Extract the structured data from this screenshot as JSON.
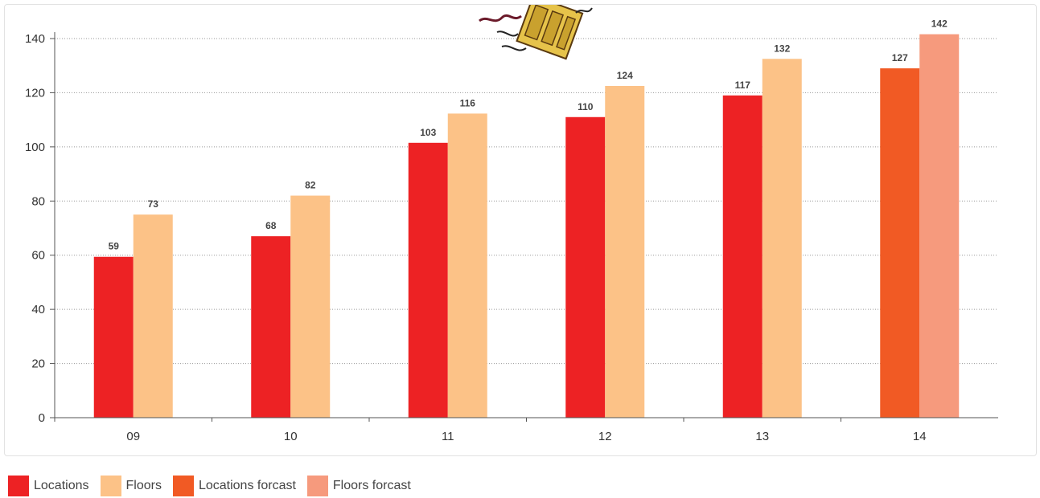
{
  "chart_data": {
    "type": "bar",
    "categories": [
      "09",
      "10",
      "11",
      "12",
      "13",
      "14"
    ],
    "series": [
      {
        "name": "Locations",
        "values": [
          59,
          68,
          103,
          110,
          117,
          null
        ],
        "color": "#ed2224"
      },
      {
        "name": "Floors",
        "values": [
          73,
          82,
          116,
          124,
          132,
          null
        ],
        "color": "#fcc287"
      },
      {
        "name": "Locations forcast",
        "values": [
          null,
          null,
          null,
          null,
          null,
          127
        ],
        "color": "#f15a24"
      },
      {
        "name": "Floors forcast",
        "values": [
          null,
          null,
          null,
          null,
          null,
          142
        ],
        "color": "#f69a7d"
      }
    ],
    "bar_heights": [
      [
        59.4,
        75
      ],
      [
        67,
        82
      ],
      [
        101.5,
        112.3
      ],
      [
        111,
        122.5
      ],
      [
        119,
        132.5
      ],
      [
        129,
        141.6
      ]
    ],
    "ylim": [
      0,
      140
    ],
    "yticks": [
      0,
      20,
      40,
      60,
      80,
      100,
      120,
      140
    ],
    "grid": "horizontal dotted",
    "legend_position": "bottom-left",
    "title": "",
    "xlabel": "",
    "ylabel": ""
  }
}
